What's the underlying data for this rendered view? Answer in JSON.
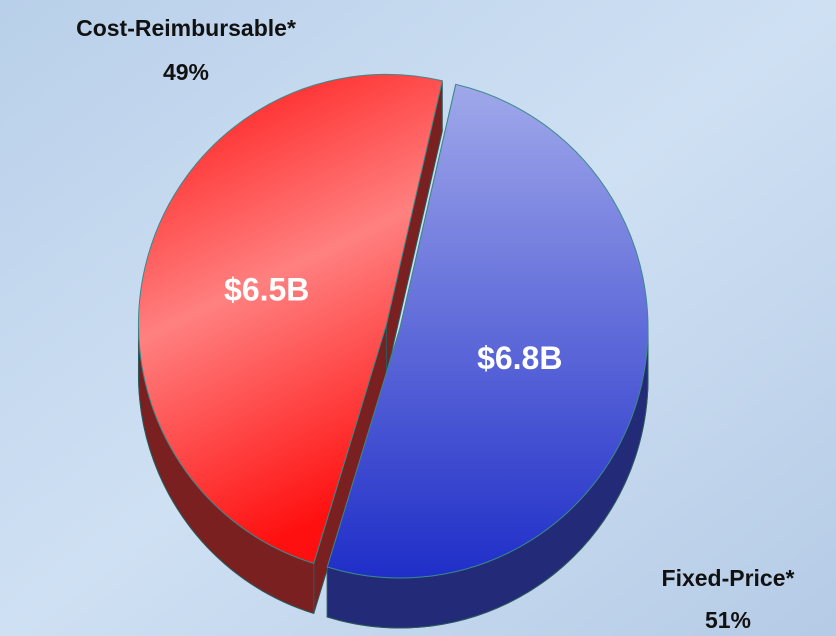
{
  "chart_data": {
    "type": "pie",
    "categories": [
      "Fixed-Price*",
      "Cost-Reimbursable*"
    ],
    "values": [
      6.8,
      6.5
    ],
    "value_labels": [
      "$6.8B",
      "$6.5B"
    ],
    "percent_labels": [
      "51%",
      "49%"
    ],
    "colors": [
      "#4a52d8",
      "#ff2a2a"
    ],
    "side_colors": [
      "#232a78",
      "#7a2020"
    ]
  }
}
